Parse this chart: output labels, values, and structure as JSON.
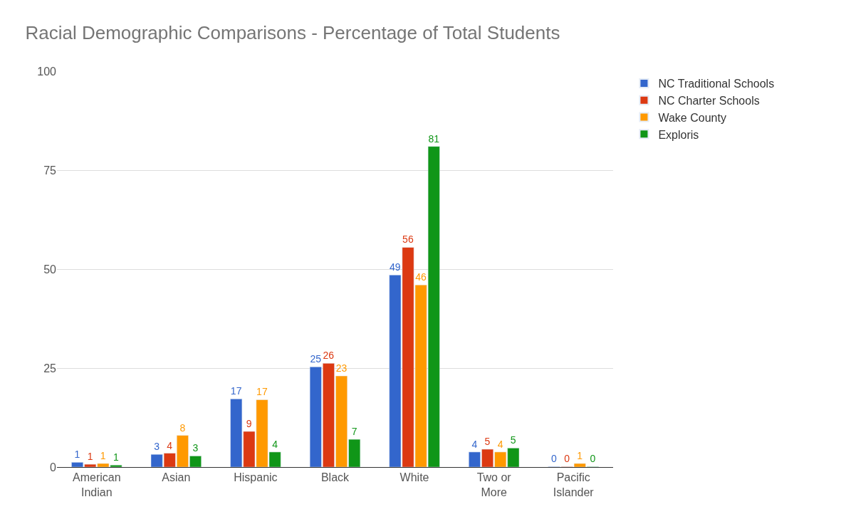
{
  "chart_data": {
    "type": "bar",
    "title": "Racial Demographic Comparisons - Percentage of Total Students",
    "categories": [
      "American Indian",
      "Asian",
      "Hispanic",
      "Black",
      "White",
      "Two or More",
      "Pacific Islander"
    ],
    "series": [
      {
        "name": "NC Traditional Schools",
        "color": "#3366cc",
        "values": [
          1.2,
          3.2,
          17.2,
          25.3,
          48.5,
          3.8,
          0.1
        ],
        "value_labels": [
          "1",
          "3",
          "17",
          "25",
          "49",
          "4",
          "0"
        ]
      },
      {
        "name": "NC Charter Schools",
        "color": "#dc3912",
        "values": [
          0.7,
          3.5,
          9,
          26.2,
          55.5,
          4.5,
          0.1
        ],
        "value_labels": [
          "1",
          "4",
          "9",
          "26",
          "56",
          "5",
          "0"
        ]
      },
      {
        "name": "Wake County",
        "color": "#ff9900",
        "values": [
          0.9,
          8,
          17,
          23,
          46,
          3.8,
          0.9
        ],
        "value_labels": [
          "1",
          "8",
          "17",
          "23",
          "46",
          "4",
          "1"
        ]
      },
      {
        "name": "Exploris",
        "color": "#109618",
        "values": [
          0.5,
          2.8,
          3.8,
          7,
          81,
          4.8,
          0.1
        ],
        "value_labels": [
          "1",
          "3",
          "4",
          "7",
          "81",
          "5",
          "0"
        ]
      }
    ],
    "ylim": [
      0,
      100
    ],
    "yticks": [
      0,
      25,
      50,
      75,
      100
    ],
    "grid": "y",
    "legend": "top right"
  }
}
